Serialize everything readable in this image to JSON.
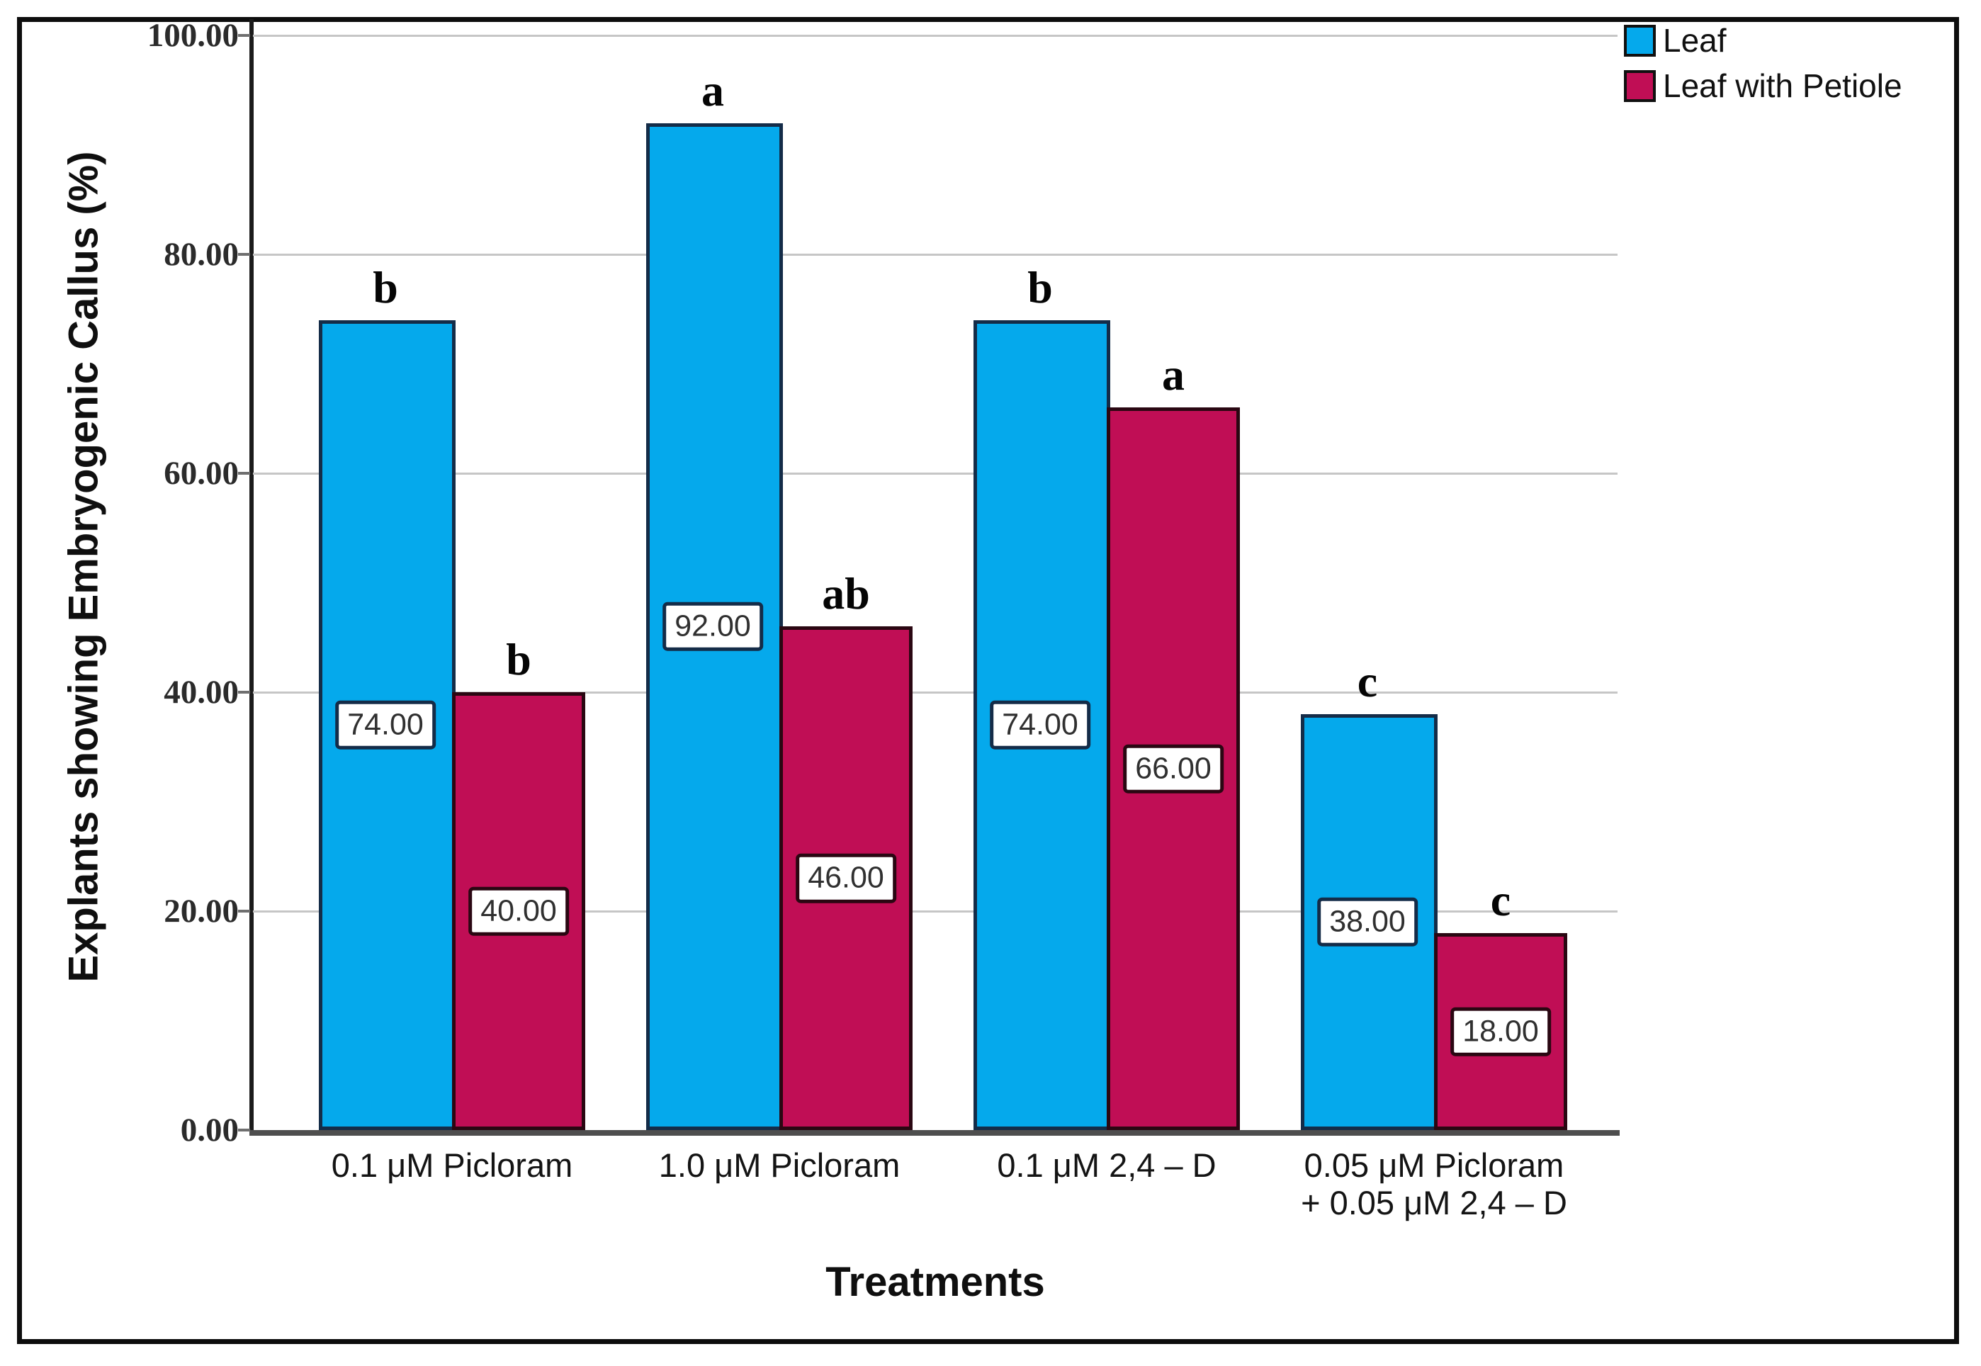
{
  "figure": {
    "background": "#ffffff",
    "border_color": "#0d0d0d"
  },
  "chart_data": {
    "type": "bar",
    "title": "",
    "xlabel": "Treatments",
    "ylabel": "Explants showing Embryogenic Callus (%)",
    "ylim": [
      0,
      100
    ],
    "ytick_values": [
      0,
      20,
      40,
      60,
      80,
      100
    ],
    "ytick_labels": [
      "0.00",
      "20.00",
      "40.00",
      "60.00",
      "80.00",
      "100.00"
    ],
    "grid": true,
    "gridline_color": "#c6c6c6",
    "axis_color": "#1b1b1b",
    "baseline_color": "#4e4e4e",
    "legend_position": "top-right",
    "categories": [
      "0.1 μM Picloram",
      "1.0 μM Picloram",
      "0.1 μM 2,4 – D",
      "0.05 μM Picloram\n+ 0.05 μM 2,4 – D"
    ],
    "series": [
      {
        "name": "Leaf",
        "color": "#05A9EC",
        "border_color": "#142c48",
        "values": [
          74,
          92,
          74,
          38
        ],
        "value_labels": [
          "74.00",
          "92.00",
          "74.00",
          "38.00"
        ],
        "sig_letters": [
          "b",
          "a",
          "b",
          "c"
        ]
      },
      {
        "name": "Leaf with Petiole",
        "color": "#C00E55",
        "border_color": "#2a0712",
        "values": [
          40,
          46,
          66,
          18
        ],
        "value_labels": [
          "40.00",
          "46.00",
          "66.00",
          "18.00"
        ],
        "sig_letters": [
          "b",
          "ab",
          "a",
          "c"
        ]
      }
    ]
  }
}
